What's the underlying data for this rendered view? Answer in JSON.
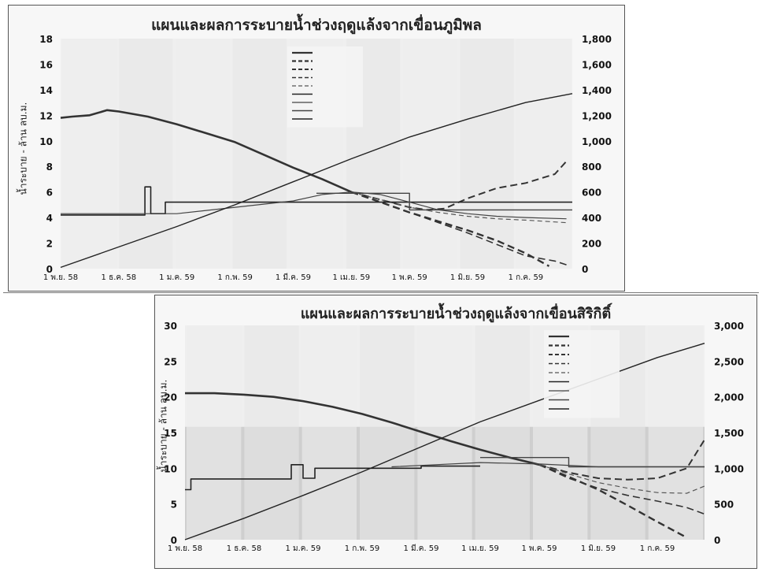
{
  "chart_data": [
    {
      "type": "line",
      "title": "แผนและผลการระบายน้ำช่วงฤดูแล้งจากเขื่อนภูมิพล",
      "ylabel": "น้ำระบาย - ล้าน ลบ.ม.",
      "ylim": [
        0,
        18
      ],
      "y2lim": [
        0,
        1800
      ],
      "yticks": [
        "0",
        "2",
        "4",
        "6",
        "8",
        "10",
        "12",
        "14",
        "16",
        "18"
      ],
      "y2ticks": [
        "0",
        "200",
        "400",
        "600",
        "800",
        "1,000",
        "1,200",
        "1,400",
        "1,600",
        "1,800"
      ],
      "xticks": [
        "1 พ.ย. 58",
        "1 ธ.ค. 58",
        "1 ม.ค. 59",
        "1 ก.พ. 59",
        "1 มี.ค. 59",
        "1 เม.ย. 59",
        "1 พ.ค. 59",
        "1 มิ.ย. 59",
        "1 ก.ค. 59"
      ],
      "xlim": [
        0,
        8.8
      ],
      "grid": false,
      "legend_position": "top-right",
      "series": [
        {
          "color": "#333333",
          "dash": "",
          "width": 2.6,
          "axis": "left",
          "x": [
            0,
            0.2,
            0.5,
            0.8,
            1.0,
            1.5,
            2.0,
            2.5,
            3.0,
            3.5,
            4.0,
            4.5,
            5.0
          ],
          "values": [
            11.8,
            11.9,
            12.0,
            12.4,
            12.3,
            11.9,
            11.3,
            10.6,
            9.9,
            8.9,
            7.9,
            7.0,
            6.0
          ]
        },
        {
          "color": "#333333",
          "dash": "9,5",
          "width": 2.4,
          "axis": "left",
          "x": [
            5.0,
            5.5,
            6.0,
            6.5,
            7.0,
            7.5,
            8.0,
            8.4
          ],
          "values": [
            6.0,
            5.2,
            4.4,
            3.7,
            3.0,
            2.2,
            1.2,
            0.2
          ]
        },
        {
          "color": "#333333",
          "dash": "9,5",
          "width": 2.0,
          "axis": "left",
          "x": [
            5.0,
            5.5,
            6.0,
            6.3,
            6.6,
            7.0,
            7.5,
            8.0,
            8.5,
            8.7
          ],
          "values": [
            6.0,
            5.4,
            4.8,
            4.6,
            4.7,
            5.5,
            6.3,
            6.7,
            7.4,
            8.4
          ]
        },
        {
          "color": "#333333",
          "dash": "9,5",
          "width": 1.6,
          "axis": "left",
          "x": [
            5.0,
            5.5,
            6.0,
            6.5,
            7.0,
            7.5,
            8.0,
            8.5,
            8.7
          ],
          "values": [
            6.0,
            5.2,
            4.4,
            3.6,
            2.8,
            1.9,
            1.0,
            0.6,
            0.3
          ]
        },
        {
          "color": "#555555",
          "dash": "6,4",
          "width": 1.2,
          "axis": "left",
          "x": [
            5.0,
            5.5,
            6.0,
            6.5,
            7.0,
            7.5,
            8.0,
            8.7
          ],
          "values": [
            6.0,
            5.4,
            4.8,
            4.4,
            4.1,
            3.9,
            3.8,
            3.6
          ]
        },
        {
          "color": "#222222",
          "dash": "",
          "width": 1.6,
          "axis": "left",
          "x": [
            0,
            1.3,
            1.3,
            1.45,
            1.45,
            1.55,
            1.55,
            1.8,
            1.8,
            5.0,
            5.0,
            8.8
          ],
          "values": [
            4.2,
            4.2,
            4.2,
            4.2,
            6.4,
            6.4,
            4.3,
            4.3,
            5.2,
            5.2,
            5.2,
            5.2
          ]
        },
        {
          "color": "#444444",
          "dash": "",
          "width": 1.2,
          "axis": "left",
          "x": [
            0,
            2.0,
            3.0,
            4.0,
            4.5,
            5.0,
            5.5,
            6.0,
            6.5,
            7.0,
            7.5,
            8.0,
            8.7
          ],
          "values": [
            4.3,
            4.3,
            4.8,
            5.3,
            5.8,
            6.0,
            5.8,
            5.2,
            4.6,
            4.3,
            4.1,
            4.0,
            3.9
          ]
        },
        {
          "color": "#444444",
          "dash": "",
          "width": 1.4,
          "axis": "left",
          "x": [
            4.4,
            6.0,
            6.0,
            8.8
          ],
          "values": [
            5.9,
            5.9,
            4.6,
            4.6
          ]
        },
        {
          "color": "#222222",
          "dash": "",
          "width": 1.4,
          "axis": "right",
          "x": [
            0,
            1,
            2,
            3,
            4,
            5,
            6,
            7,
            8,
            8.8
          ],
          "values": [
            10,
            170,
            330,
            500,
            680,
            860,
            1030,
            1170,
            1300,
            1370
          ]
        }
      ]
    },
    {
      "type": "line",
      "title": "แผนและผลการระบายน้ำช่วงฤดูแล้งจากเขื่อนสิริกิติ์",
      "ylabel": "น้ำระบาย - ล้าน ลบ.ม.",
      "ylim": [
        0,
        30
      ],
      "y2lim": [
        0,
        3000
      ],
      "yticks": [
        "0",
        "5",
        "10",
        "15",
        "20",
        "25",
        "30"
      ],
      "y2ticks": [
        "0",
        "500",
        "1,000",
        "1,500",
        "2,000",
        "2,500",
        "3,000"
      ],
      "xticks": [
        "1 พ.ย. 58",
        "1 ธ.ค. 58",
        "1 ม.ค. 59",
        "1 ก.พ. 59",
        "1 มี.ค. 59",
        "1 เม.ย. 59",
        "1 พ.ค. 59",
        "1 มิ.ย. 59",
        "1 ก.ค. 59"
      ],
      "xlim": [
        0,
        8.8
      ],
      "grid": false,
      "legend_position": "top-right",
      "series": [
        {
          "color": "#333333",
          "dash": "",
          "width": 2.6,
          "axis": "left",
          "x": [
            0,
            0.5,
            1.0,
            1.5,
            2.0,
            2.5,
            3.0,
            3.5,
            4.0,
            4.5,
            5.0,
            5.5,
            6.0
          ],
          "values": [
            20.5,
            20.5,
            20.3,
            20.0,
            19.4,
            18.6,
            17.6,
            16.4,
            15.1,
            13.8,
            12.6,
            11.5,
            10.5
          ]
        },
        {
          "color": "#333333",
          "dash": "9,5",
          "width": 2.4,
          "axis": "left",
          "x": [
            6.0,
            6.5,
            7.0,
            7.5,
            8.0,
            8.5
          ],
          "values": [
            10.5,
            8.8,
            7.0,
            4.8,
            2.5,
            0.3
          ]
        },
        {
          "color": "#333333",
          "dash": "9,5",
          "width": 2.0,
          "axis": "left",
          "x": [
            6.0,
            6.5,
            7.0,
            7.5,
            8.0,
            8.5,
            8.8
          ],
          "values": [
            10.5,
            9.4,
            8.6,
            8.4,
            8.6,
            10.0,
            14.0
          ]
        },
        {
          "color": "#333333",
          "dash": "9,5",
          "width": 1.6,
          "axis": "left",
          "x": [
            6.0,
            6.5,
            7.0,
            7.5,
            8.0,
            8.5,
            8.8
          ],
          "values": [
            10.5,
            8.6,
            7.2,
            6.2,
            5.4,
            4.5,
            3.6
          ]
        },
        {
          "color": "#555555",
          "dash": "6,4",
          "width": 1.2,
          "axis": "left",
          "x": [
            6.0,
            6.5,
            7.0,
            7.5,
            8.0,
            8.5,
            8.8
          ],
          "values": [
            10.5,
            9.2,
            8.0,
            7.2,
            6.6,
            6.5,
            7.5
          ]
        },
        {
          "color": "#222222",
          "dash": "",
          "width": 1.6,
          "axis": "left",
          "x": [
            0,
            0.1,
            0.1,
            1.8,
            1.8,
            2.0,
            2.0,
            2.2,
            2.2,
            2.4,
            2.4,
            4.0,
            4.0,
            5.0
          ],
          "values": [
            7.0,
            7.0,
            8.5,
            8.5,
            10.5,
            10.5,
            8.6,
            8.6,
            10.0,
            10.0,
            10.0,
            10.0,
            10.3,
            10.3
          ]
        },
        {
          "color": "#444444",
          "dash": "",
          "width": 1.2,
          "axis": "left",
          "x": [
            3.5,
            4.0,
            5.0,
            6.0,
            7.0,
            8.0,
            8.8
          ],
          "values": [
            10.2,
            10.4,
            10.8,
            10.6,
            10.2,
            10.2,
            10.2
          ]
        },
        {
          "color": "#444444",
          "dash": "",
          "width": 1.4,
          "axis": "left",
          "x": [
            5.0,
            6.5,
            6.5,
            8.8
          ],
          "values": [
            11.5,
            11.5,
            10.2,
            10.2
          ]
        },
        {
          "color": "#222222",
          "dash": "",
          "width": 1.4,
          "axis": "right",
          "x": [
            0,
            1,
            2,
            3,
            4,
            5,
            6,
            7,
            8,
            8.8
          ],
          "values": [
            0,
            300,
            620,
            950,
            1300,
            1650,
            1950,
            2250,
            2550,
            2750
          ]
        }
      ]
    }
  ]
}
